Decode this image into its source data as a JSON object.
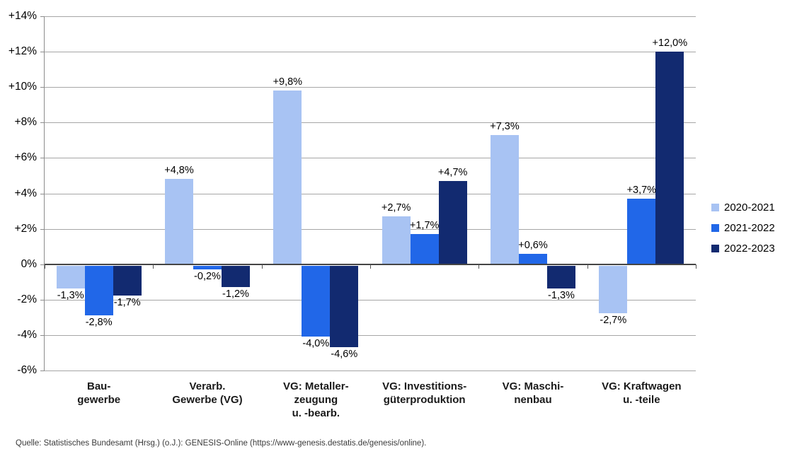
{
  "source_note": "Quelle: Statistisches Bundesamt (Hrsg.) (o.J.): GENESIS-Online (https://www-genesis.destatis.de/genesis/online).",
  "colors": {
    "series_light": "#a8c3f3",
    "series_medium": "#2167e8",
    "series_dark": "#122a70",
    "gridline": "#a6a6a6",
    "zero_line": "#454545",
    "axis_line": "#8c8c8c",
    "text": "#000000"
  },
  "chart_data": {
    "type": "bar",
    "title": "",
    "xlabel": "",
    "ylabel": "",
    "ylim": [
      -6,
      14
    ],
    "ytick_step": 2,
    "ytick_labels": [
      "+14%",
      "+12%",
      "+10%",
      "+8%",
      "+6%",
      "+4%",
      "+2%",
      "0%",
      "-2%",
      "-4%",
      "-6%"
    ],
    "grid": true,
    "legend_position": "right",
    "categories": [
      "Bau-gewerbe",
      "Verarb. Gewerbe (VG)",
      "VG: Metallerzeugung u. -bearb.",
      "VG: Investitionsgüterproduktion",
      "VG: Maschinenbau",
      "VG: Kraftwagen u. -teile"
    ],
    "category_label_lines": [
      [
        "Bau-",
        "gewerbe"
      ],
      [
        "Verarb.",
        "Gewerbe (VG)"
      ],
      [
        "VG: Metaller-",
        "zeugung",
        "u. -bearb."
      ],
      [
        "VG: Investitions-",
        "güterproduktion"
      ],
      [
        "VG: Maschi-",
        "nenbau"
      ],
      [
        "VG: Kraftwagen",
        "u. -teile"
      ]
    ],
    "series": [
      {
        "name": "2020-2021",
        "color": "#a8c3f3",
        "values": [
          -1.3,
          4.8,
          9.8,
          2.7,
          7.3,
          -2.7
        ],
        "labels": [
          "-1,3%",
          "+4,8%",
          "+9,8%",
          "+2,7%",
          "+7,3%",
          "-2,7%"
        ]
      },
      {
        "name": "2021-2022",
        "color": "#2167e8",
        "values": [
          -2.8,
          -0.2,
          -4.0,
          1.7,
          0.6,
          3.7
        ],
        "labels": [
          "-2,8%",
          "-0,2%",
          "-4,0%",
          "+1,7%",
          "+0,6%",
          "+3,7%"
        ]
      },
      {
        "name": "2022-2023",
        "color": "#122a70",
        "values": [
          -1.7,
          -1.2,
          -4.6,
          4.7,
          -1.3,
          12.0
        ],
        "labels": [
          "-1,7%",
          "-1,2%",
          "-4,6%",
          "+4,7%",
          "-1,3%",
          "+12,0%"
        ]
      }
    ]
  }
}
